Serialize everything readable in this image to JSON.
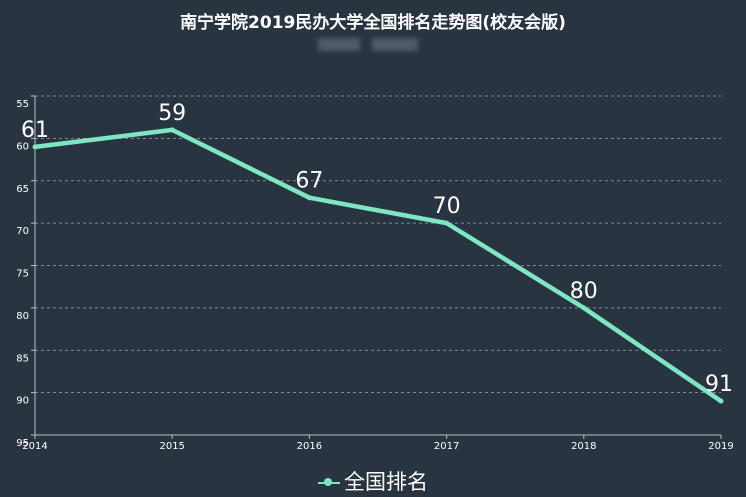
{
  "colors": {
    "background": "#293441",
    "line": "#7ee6c2",
    "text": "#ffffff",
    "grid": "#c8ccd2",
    "axis": "#b9bec6"
  },
  "chart_data": {
    "type": "line",
    "title": "南宁学院2019民办大学全国排名走势图(校友会版)",
    "categories": [
      "2014",
      "2015",
      "2016",
      "2017",
      "2018",
      "2019"
    ],
    "series": [
      {
        "name": "全国排名",
        "values": [
          61,
          59,
          67,
          70,
          80,
          91
        ]
      }
    ],
    "ylim": [
      55,
      95
    ],
    "y_inverted": true,
    "y_ticks": [
      55,
      60,
      65,
      70,
      75,
      80,
      85,
      90,
      95
    ],
    "grid": "horizontal-dashed",
    "legend_position": "bottom-center"
  }
}
